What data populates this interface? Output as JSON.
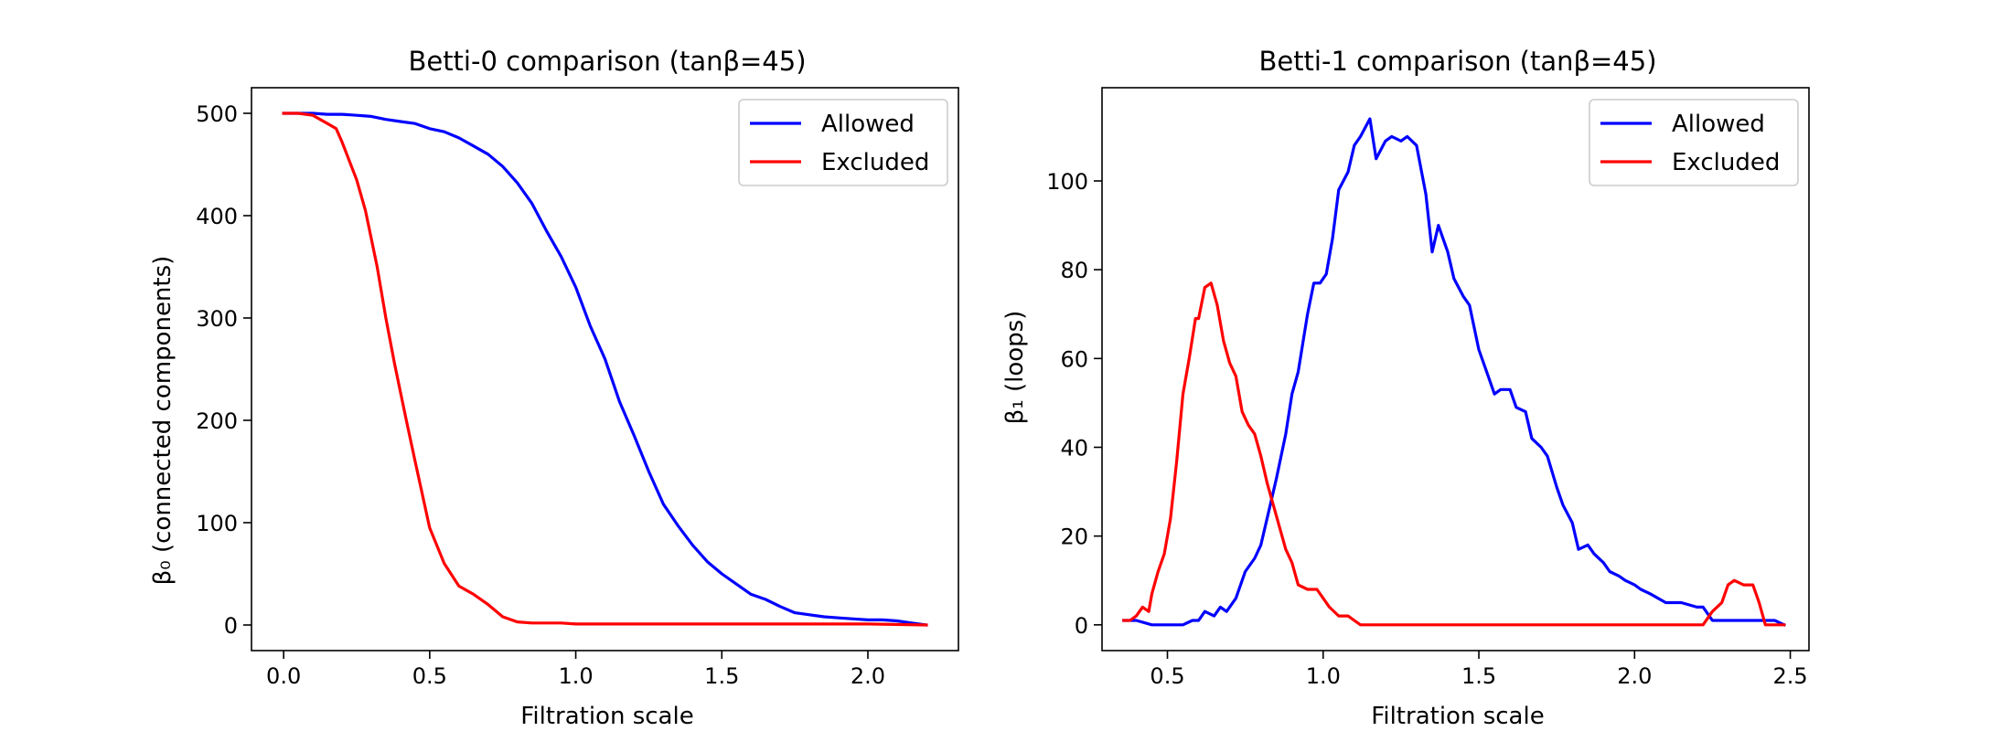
{
  "chart_data": [
    {
      "type": "line",
      "title": "Betti-0 comparison (tanβ=45)",
      "xlabel": "Filtration scale",
      "ylabel": "β₀ (connected components)",
      "xlim": [
        -0.11,
        2.31
      ],
      "ylim": [
        -25,
        525
      ],
      "xticks": [
        0.0,
        0.5,
        1.0,
        1.5,
        2.0
      ],
      "xtick_labels": [
        "0.0",
        "0.5",
        "1.0",
        "1.5",
        "2.0"
      ],
      "yticks": [
        0,
        100,
        200,
        300,
        400,
        500
      ],
      "ytick_labels": [
        "0",
        "100",
        "200",
        "300",
        "400",
        "500"
      ],
      "legend": "top-right",
      "series": [
        {
          "name": "Allowed",
          "color": "#0000ff",
          "x": [
            0.0,
            0.05,
            0.1,
            0.15,
            0.2,
            0.25,
            0.3,
            0.35,
            0.4,
            0.45,
            0.5,
            0.55,
            0.6,
            0.65,
            0.7,
            0.75,
            0.8,
            0.85,
            0.9,
            0.95,
            1.0,
            1.05,
            1.1,
            1.15,
            1.2,
            1.25,
            1.3,
            1.35,
            1.4,
            1.45,
            1.5,
            1.55,
            1.6,
            1.65,
            1.7,
            1.75,
            1.8,
            1.85,
            1.9,
            1.95,
            2.0,
            2.05,
            2.1,
            2.15,
            2.2
          ],
          "y": [
            500,
            500,
            500,
            499,
            499,
            498,
            497,
            494,
            492,
            490,
            485,
            482,
            476,
            468,
            460,
            448,
            432,
            412,
            385,
            360,
            330,
            292,
            260,
            218,
            185,
            150,
            118,
            97,
            78,
            62,
            50,
            40,
            30,
            25,
            18,
            12,
            10,
            8,
            7,
            6,
            5,
            5,
            4,
            2,
            0
          ]
        },
        {
          "name": "Excluded",
          "color": "#ff0000",
          "x": [
            0.0,
            0.05,
            0.1,
            0.15,
            0.18,
            0.2,
            0.25,
            0.28,
            0.32,
            0.35,
            0.38,
            0.42,
            0.45,
            0.5,
            0.55,
            0.6,
            0.65,
            0.7,
            0.75,
            0.8,
            0.85,
            0.9,
            0.95,
            1.0,
            1.5,
            2.0,
            2.2
          ],
          "y": [
            500,
            500,
            498,
            490,
            485,
            472,
            435,
            405,
            350,
            300,
            255,
            200,
            160,
            95,
            60,
            38,
            30,
            20,
            8,
            3,
            2,
            2,
            2,
            1,
            1,
            1,
            0
          ]
        }
      ]
    },
    {
      "type": "line",
      "title": "Betti-1 comparison (tanβ=45)",
      "xlabel": "Filtration scale",
      "ylabel": "β₁ (loops)",
      "xlim": [
        0.29,
        2.56
      ],
      "ylim": [
        -5.8,
        121
      ],
      "xticks": [
        0.5,
        1.0,
        1.5,
        2.0,
        2.5
      ],
      "xtick_labels": [
        "0.5",
        "1.0",
        "1.5",
        "2.0",
        "2.5"
      ],
      "yticks": [
        0,
        20,
        40,
        60,
        80,
        100
      ],
      "ytick_labels": [
        "0",
        "20",
        "40",
        "60",
        "80",
        "100"
      ],
      "legend": "top-right",
      "series": [
        {
          "name": "Allowed",
          "color": "#0000ff",
          "x": [
            0.36,
            0.4,
            0.45,
            0.5,
            0.55,
            0.58,
            0.6,
            0.62,
            0.65,
            0.67,
            0.69,
            0.72,
            0.75,
            0.78,
            0.8,
            0.83,
            0.85,
            0.88,
            0.9,
            0.92,
            0.95,
            0.97,
            0.99,
            1.01,
            1.03,
            1.05,
            1.08,
            1.1,
            1.12,
            1.15,
            1.17,
            1.2,
            1.22,
            1.25,
            1.27,
            1.3,
            1.33,
            1.35,
            1.37,
            1.4,
            1.42,
            1.45,
            1.47,
            1.5,
            1.52,
            1.55,
            1.57,
            1.6,
            1.62,
            1.65,
            1.67,
            1.7,
            1.72,
            1.75,
            1.77,
            1.8,
            1.82,
            1.85,
            1.87,
            1.9,
            1.92,
            1.95,
            1.97,
            2.0,
            2.02,
            2.05,
            2.1,
            2.15,
            2.2,
            2.22,
            2.25,
            2.3,
            2.35,
            2.4,
            2.45,
            2.48
          ],
          "y": [
            1,
            1,
            0,
            0,
            0,
            1,
            1,
            3,
            2,
            4,
            3,
            6,
            12,
            15,
            18,
            27,
            33,
            43,
            52,
            57,
            70,
            77,
            77,
            79,
            87,
            98,
            102,
            108,
            110,
            114,
            105,
            109,
            110,
            109,
            110,
            108,
            97,
            84,
            90,
            84,
            78,
            74,
            72,
            62,
            58,
            52,
            53,
            53,
            49,
            48,
            42,
            40,
            38,
            31,
            27,
            23,
            17,
            18,
            16,
            14,
            12,
            11,
            10,
            9,
            8,
            7,
            5,
            5,
            4,
            4,
            1,
            1,
            1,
            1,
            1,
            0
          ]
        },
        {
          "name": "Excluded",
          "color": "#ff0000",
          "x": [
            0.36,
            0.38,
            0.4,
            0.42,
            0.44,
            0.45,
            0.47,
            0.49,
            0.51,
            0.53,
            0.55,
            0.57,
            0.59,
            0.6,
            0.62,
            0.64,
            0.66,
            0.68,
            0.7,
            0.72,
            0.74,
            0.76,
            0.78,
            0.8,
            0.82,
            0.84,
            0.86,
            0.88,
            0.9,
            0.92,
            0.95,
            0.98,
            1.0,
            1.02,
            1.05,
            1.08,
            1.1,
            1.12,
            1.15,
            1.2,
            1.5,
            2.0,
            2.22,
            2.25,
            2.28,
            2.3,
            2.32,
            2.35,
            2.38,
            2.4,
            2.42,
            2.45,
            2.48
          ],
          "y": [
            1,
            1,
            2,
            4,
            3,
            7,
            12,
            16,
            24,
            37,
            52,
            60,
            69,
            69,
            76,
            77,
            72,
            64,
            59,
            56,
            48,
            45,
            43,
            38,
            32,
            27,
            22,
            17,
            14,
            9,
            8,
            8,
            6,
            4,
            2,
            2,
            1,
            0,
            0,
            0,
            0,
            0,
            0,
            3,
            5,
            9,
            10,
            9,
            9,
            5,
            0,
            0,
            0
          ]
        }
      ]
    }
  ]
}
